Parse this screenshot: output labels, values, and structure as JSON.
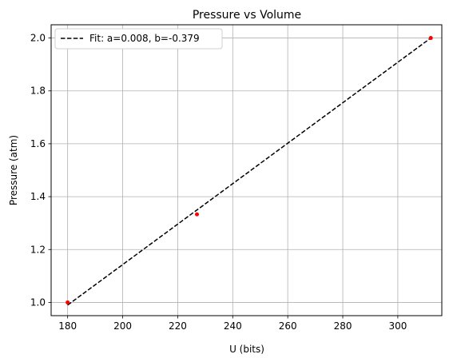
{
  "chart_data": {
    "type": "scatter",
    "title": "Pressure vs Volume",
    "xlabel": "U (bits)",
    "ylabel": "Pressure (atm)",
    "xlim": [
      174,
      316
    ],
    "ylim": [
      0.95,
      2.05
    ],
    "xticks": [
      180,
      200,
      220,
      240,
      260,
      280,
      300
    ],
    "yticks": [
      1.0,
      1.2,
      1.4,
      1.6,
      1.8,
      2.0
    ],
    "xtick_labels": [
      "180",
      "200",
      "220",
      "240",
      "260",
      "280",
      "300"
    ],
    "ytick_labels": [
      "1.0",
      "1.2",
      "1.4",
      "1.6",
      "1.8",
      "2.0"
    ],
    "grid": true,
    "legend_position": "top-left",
    "points": {
      "color": "#ff0000",
      "x": [
        180,
        227,
        312
      ],
      "y": [
        1.0,
        1.333,
        2.0
      ]
    },
    "fit_line": {
      "label": "Fit: a=0.008, b=-0.379",
      "color": "#000000",
      "style": "dashed",
      "x": [
        180,
        312
      ],
      "y": [
        0.99,
        2.0
      ]
    }
  }
}
